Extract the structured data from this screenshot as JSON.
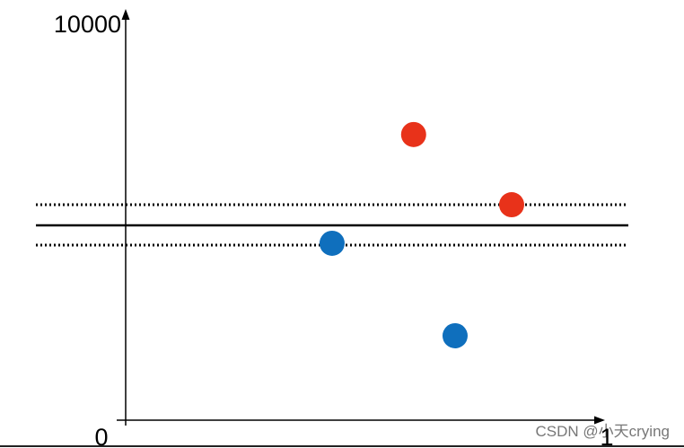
{
  "chart_data": {
    "type": "scatter",
    "xlim": [
      0,
      1
    ],
    "ylim": [
      0,
      10000
    ],
    "xticks": [
      0,
      1
    ],
    "yticks": [
      10000
    ],
    "series": [
      {
        "color": "#e8321a",
        "x": [
          0.611,
          0.819
        ],
        "values": [
          7070,
          5333
        ]
      },
      {
        "color": "#0f6fbd",
        "x": [
          0.438,
          0.699
        ],
        "values": [
          4378,
          2089
        ]
      }
    ],
    "hlines": [
      {
        "value": 4822,
        "style": "solid"
      },
      {
        "value": 5333,
        "style": "dotted"
      },
      {
        "value": 4333,
        "style": "dotted"
      }
    ]
  },
  "watermark": "CSDN @小天crying"
}
